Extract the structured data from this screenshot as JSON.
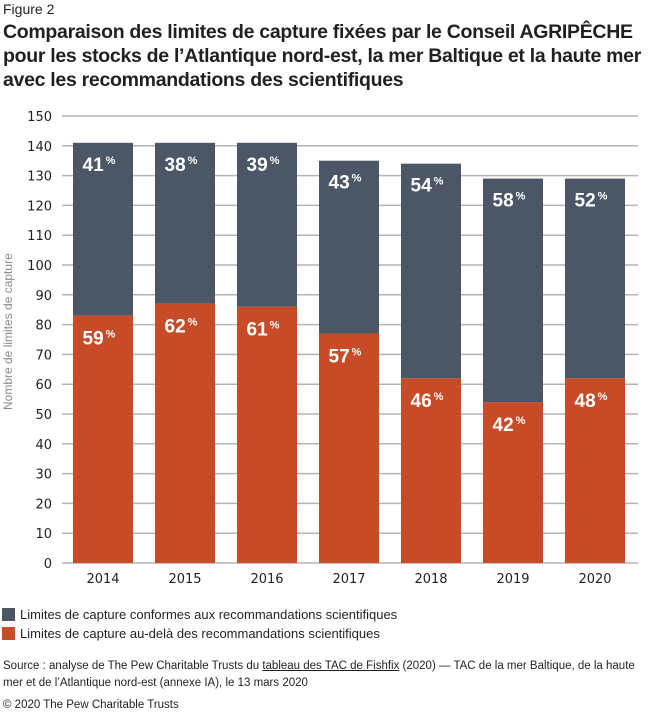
{
  "figure_label": "Figure 2",
  "colors": {
    "conformes": "#4b5767",
    "au_dela": "#c74b26",
    "grid": "#b4b4b4",
    "label_text": "#ffffff"
  },
  "chart_data": {
    "type": "bar",
    "stacked": true,
    "title": "Comparaison des limites de capture fixées par le Conseil AGRIPÊCHE pour les stocks de l’Atlantique nord-est, la mer Baltique et la haute mer avec les recommandations des scientifiques",
    "xlabel": "",
    "ylabel": "Nombre de limites de capture",
    "ylim": [
      0,
      150
    ],
    "yticks": [
      "0",
      "10",
      "20",
      "30",
      "40",
      "50",
      "60",
      "70",
      "80",
      "90",
      "100",
      "110",
      "120",
      "130",
      "140",
      "150"
    ],
    "grid": true,
    "legend_position": "bottom-left",
    "categories": [
      "2014",
      "2015",
      "2016",
      "2017",
      "2018",
      "2019",
      "2020"
    ],
    "series": [
      {
        "name": "Limites de capture au-delà des recommandations scientifiques",
        "values": [
          83,
          87,
          86,
          77,
          62,
          54,
          62
        ],
        "labels": [
          "59",
          "62",
          "61",
          "57",
          "46",
          "42",
          "48"
        ]
      },
      {
        "name": "Limites de capture conformes aux recommandations scientifiques",
        "values": [
          58,
          54,
          55,
          58,
          72,
          75,
          67
        ],
        "labels": [
          "41",
          "38",
          "39",
          "43",
          "54",
          "58",
          "52"
        ]
      }
    ],
    "percent_sign": "%"
  },
  "source": {
    "prefix": "Source : analyse de The Pew Charitable Trusts du ",
    "link_text": "tableau des TAC de Fishfix",
    "suffix": " (2020) — TAC de la mer Baltique, de la haute mer et de l’Atlantique nord-est (annexe IA), le 13 mars 2020"
  },
  "copyright": "© 2020 The Pew Charitable Trusts"
}
